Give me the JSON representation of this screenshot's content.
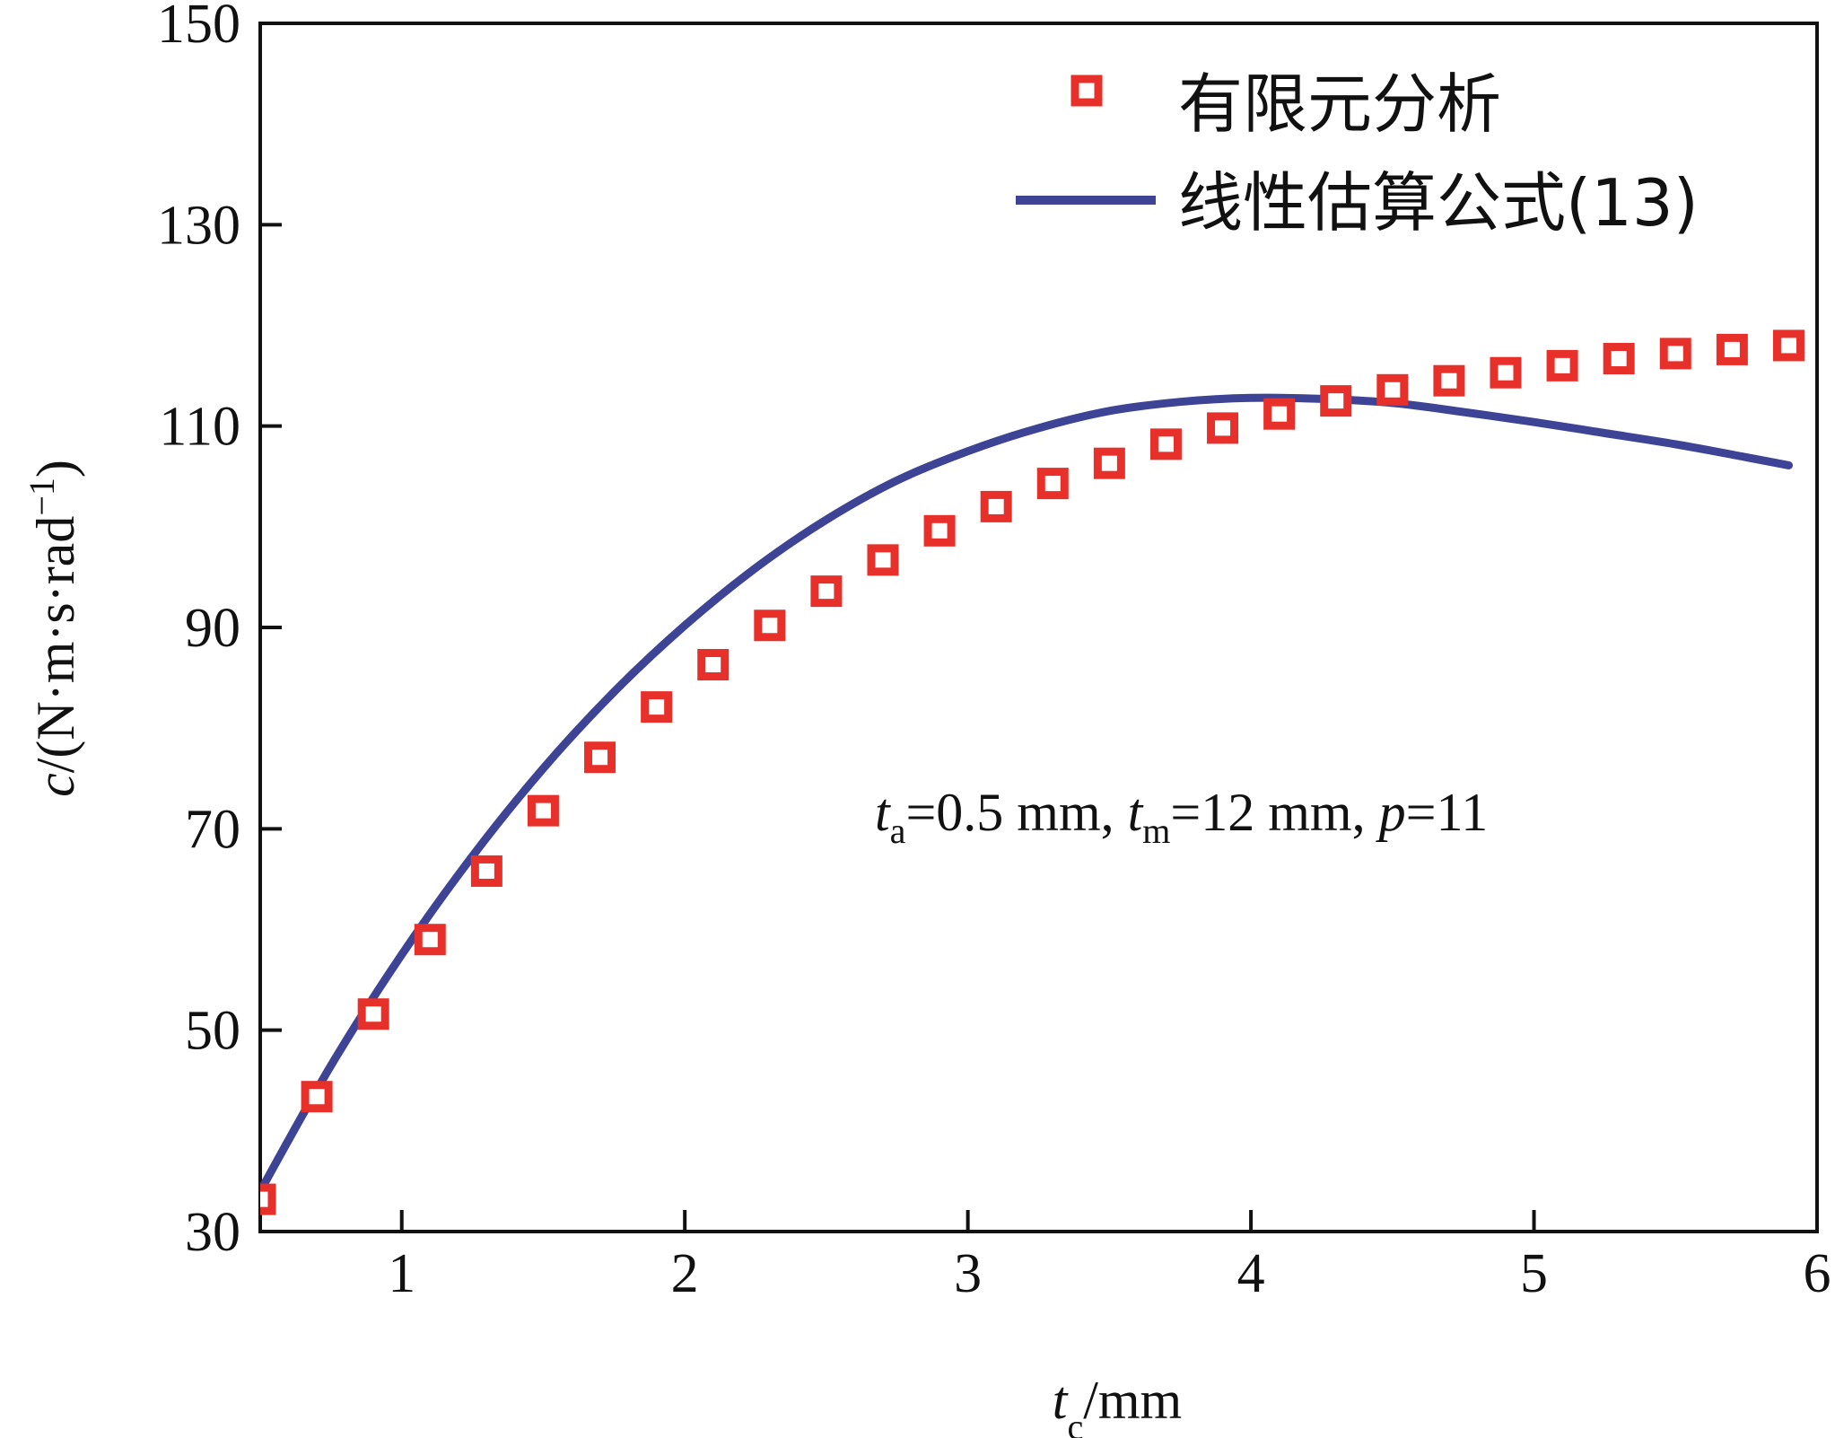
{
  "chart_data": {
    "type": "scatter",
    "title": "",
    "xlabel": {
      "main": "t",
      "sub": "c",
      "unit": "/mm"
    },
    "ylabel": {
      "main": "c",
      "rest": "/(N·m·s·rad",
      "sup": "−1",
      "close": ")"
    },
    "xlim": [
      0.5,
      6
    ],
    "ylim": [
      30,
      150
    ],
    "xticks": [
      1,
      2,
      3,
      4,
      5,
      6
    ],
    "yticks": [
      30,
      50,
      70,
      90,
      110,
      130,
      150
    ],
    "grid": false,
    "legend_position": "top-right",
    "series": [
      {
        "name": "有限元分析",
        "kind": "markers",
        "marker": "square",
        "color": "#e8302a",
        "x": [
          0.5,
          0.7,
          0.9,
          1.1,
          1.3,
          1.5,
          1.7,
          1.9,
          2.1,
          2.3,
          2.5,
          2.7,
          2.9,
          3.1,
          3.3,
          3.5,
          3.7,
          3.9,
          4.1,
          4.3,
          4.5,
          4.7,
          4.9,
          5.1,
          5.3,
          5.5,
          5.7,
          5.9
        ],
        "y": [
          33.2,
          43.4,
          51.6,
          59.0,
          65.8,
          71.8,
          77.1,
          82.1,
          86.3,
          90.2,
          93.6,
          96.7,
          99.6,
          102.0,
          104.3,
          106.3,
          108.2,
          109.8,
          111.2,
          112.5,
          113.6,
          114.5,
          115.3,
          116.0,
          116.7,
          117.2,
          117.6,
          118.0
        ]
      },
      {
        "name": "线性估算公式(13)",
        "kind": "line",
        "color": "#3d4496",
        "x": [
          0.5,
          0.75,
          1.0,
          1.25,
          1.5,
          1.75,
          2.0,
          2.25,
          2.5,
          2.75,
          3.0,
          3.25,
          3.5,
          3.75,
          4.0,
          4.25,
          4.5,
          4.75,
          5.0,
          5.25,
          5.5,
          5.75,
          5.9
        ],
        "y": [
          34.0,
          46.5,
          57.5,
          67.3,
          76.0,
          83.6,
          90.2,
          95.9,
          100.7,
          104.6,
          107.5,
          109.8,
          111.5,
          112.4,
          112.8,
          112.7,
          112.3,
          111.4,
          110.4,
          109.3,
          108.2,
          106.9,
          106.1
        ]
      }
    ],
    "annotation": {
      "parts": [
        {
          "text": "t",
          "style": "italic"
        },
        {
          "text": "a",
          "style": "sub"
        },
        {
          "text": "=0.5 mm, ",
          "style": "normal"
        },
        {
          "text": "t",
          "style": "italic"
        },
        {
          "text": "m",
          "style": "sub"
        },
        {
          "text": "=12 mm, ",
          "style": "normal"
        },
        {
          "text": "p",
          "style": "italic"
        },
        {
          "text": "=11",
          "style": "normal"
        }
      ]
    }
  }
}
